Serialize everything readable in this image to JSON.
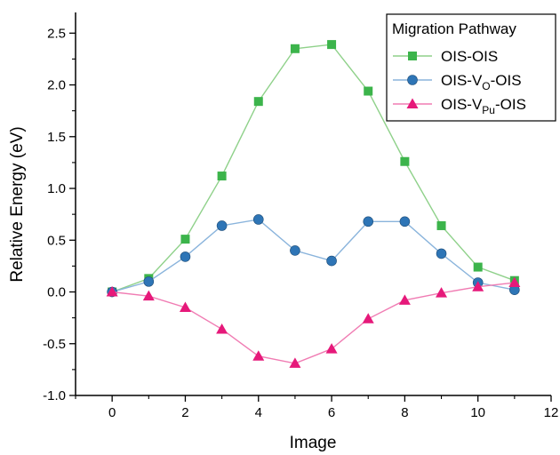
{
  "chart_data": {
    "type": "line",
    "xlabel": "Image",
    "ylabel": "Relative Energy (eV)",
    "xlim": [
      -1,
      12
    ],
    "ylim": [
      -1.0,
      2.7
    ],
    "x_ticks": [
      "0",
      "2",
      "4",
      "6",
      "8",
      "10",
      "12"
    ],
    "y_ticks": [
      "-1.0",
      "-0.5",
      "0.0",
      "0.5",
      "1.0",
      "1.5",
      "2.0",
      "2.5"
    ],
    "grid": false,
    "legend": {
      "title": "Migration Pathway",
      "placement": "top-right"
    },
    "x": [
      0,
      1,
      2,
      3,
      4,
      5,
      6,
      7,
      8,
      9,
      10,
      11
    ],
    "series": [
      {
        "name": "OIS-OIS",
        "name_parts": [
          {
            "text": "OIS-OIS",
            "sub": false
          }
        ],
        "color": "#3cb44b",
        "line_color": "#8fd18a",
        "marker": "square",
        "values": [
          0.0,
          0.13,
          0.51,
          1.12,
          1.84,
          2.35,
          2.39,
          1.94,
          1.26,
          0.64,
          0.24,
          0.11
        ]
      },
      {
        "name": "OIS-VO-OIS",
        "name_parts": [
          {
            "text": "OIS-V",
            "sub": false
          },
          {
            "text": "O",
            "sub": true
          },
          {
            "text": "-OIS",
            "sub": false
          }
        ],
        "color": "#2e75b6",
        "line_color": "#8ab4dc",
        "marker": "circle",
        "values": [
          0.0,
          0.1,
          0.34,
          0.64,
          0.7,
          0.4,
          0.3,
          0.68,
          0.68,
          0.37,
          0.09,
          0.02
        ]
      },
      {
        "name": "OIS-VPu-OIS",
        "name_parts": [
          {
            "text": "OIS-V",
            "sub": false
          },
          {
            "text": "Pu",
            "sub": true
          },
          {
            "text": "-OIS",
            "sub": false
          }
        ],
        "color": "#e6197a",
        "line_color": "#f07cb3",
        "marker": "triangle",
        "values": [
          0.0,
          -0.04,
          -0.15,
          -0.36,
          -0.62,
          -0.69,
          -0.55,
          -0.26,
          -0.08,
          -0.01,
          0.05,
          0.09
        ]
      }
    ]
  }
}
